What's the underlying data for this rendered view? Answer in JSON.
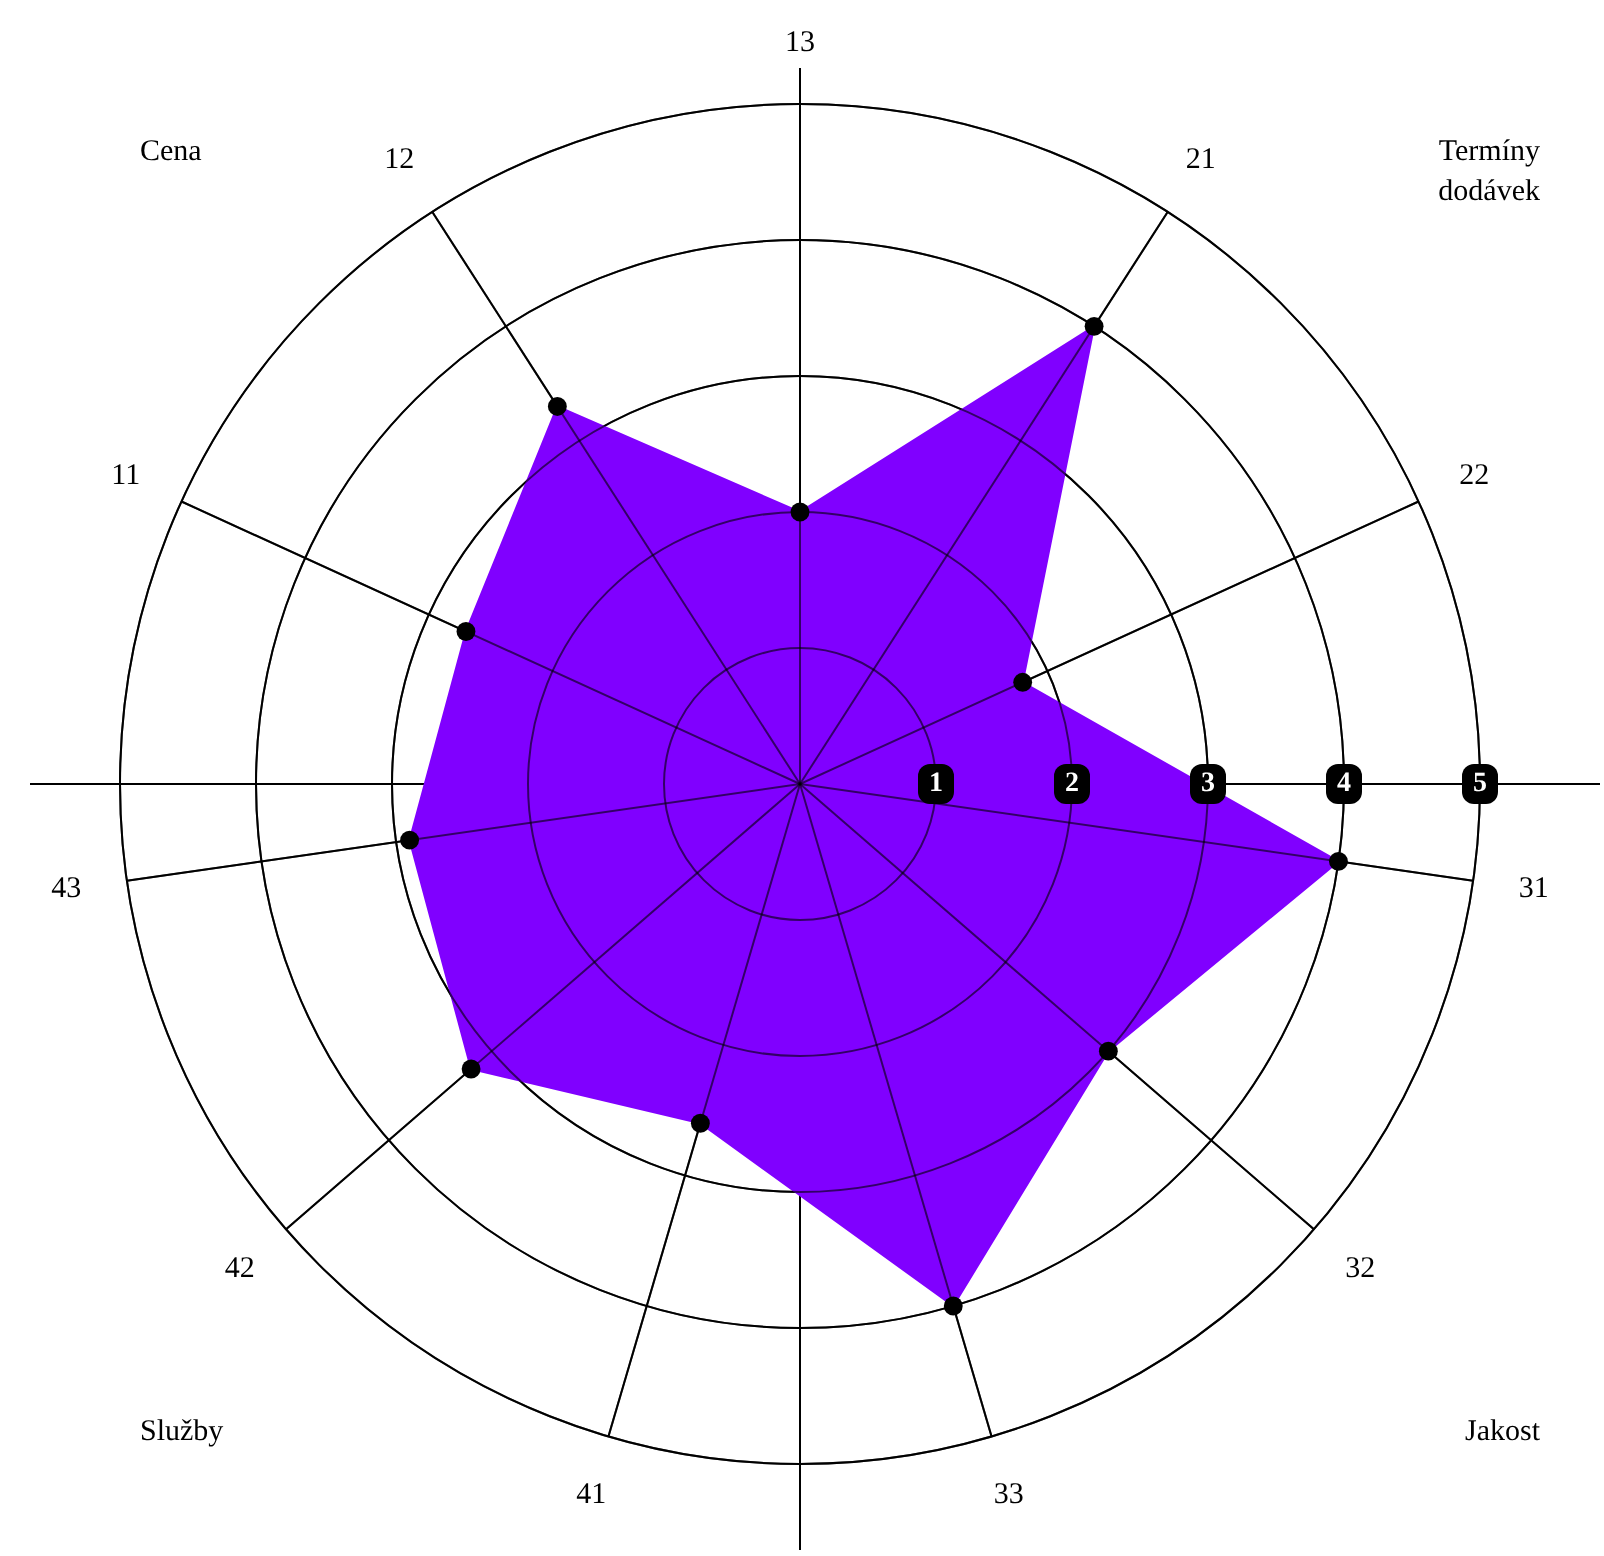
{
  "chart_data": {
    "type": "radar",
    "categories": [
      "13",
      "21",
      "22",
      "31",
      "32",
      "33",
      "41",
      "42",
      "43",
      "11",
      "12"
    ],
    "series": [
      {
        "color": "#8000ff",
        "values": [
          2.0,
          4.0,
          1.8,
          4.0,
          3.0,
          4.0,
          2.6,
          3.2,
          2.9,
          2.7,
          3.3
        ]
      }
    ],
    "ylim": [
      0,
      5
    ],
    "yticks": [
      1,
      2,
      3,
      4,
      5
    ],
    "grid": true,
    "marker": "circle",
    "annotations": [
      "Cena",
      "Termíny dodávek",
      "Jakost",
      "Služby"
    ]
  }
}
